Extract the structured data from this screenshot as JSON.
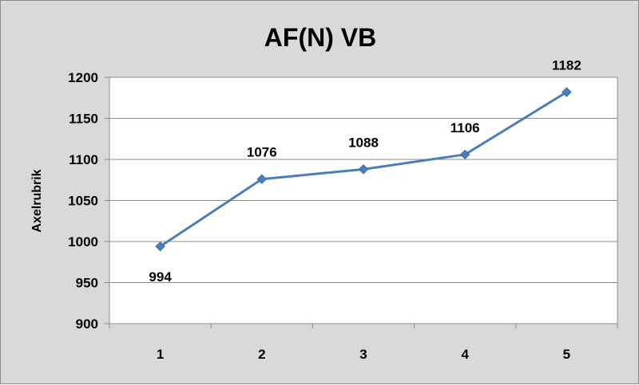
{
  "chart_data": {
    "type": "line",
    "title": "AF(N) VB",
    "xlabel": "",
    "ylabel": "Axelrubrik",
    "categories": [
      "1",
      "2",
      "3",
      "4",
      "5"
    ],
    "series": [
      {
        "values": [
          994,
          1076,
          1088,
          1106,
          1182
        ]
      }
    ],
    "data_labels": [
      "994",
      "1076",
      "1088",
      "1106",
      "1182"
    ],
    "y_ticks": [
      "900",
      "950",
      "1000",
      "1050",
      "1100",
      "1150",
      "1200"
    ],
    "ylim": [
      900,
      1200
    ],
    "grid": true,
    "legend": "none",
    "colors": {
      "line": "#4a7ebb",
      "marker": "#4a7ebb",
      "background": "#d9d9d9",
      "plot_area": "#ffffff",
      "grid": "#8c8c8c"
    }
  }
}
